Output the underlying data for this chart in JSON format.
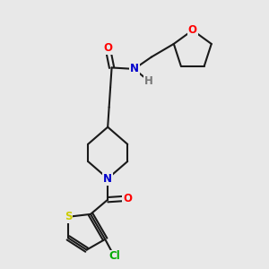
{
  "background_color": "#e8e8e8",
  "bond_color": "#1a1a1a",
  "bond_width": 1.5,
  "atom_colors": {
    "O": "#ff0000",
    "N": "#0000cc",
    "S": "#cccc00",
    "Cl": "#00aa00",
    "H": "#777777",
    "C": "#1a1a1a"
  },
  "font_size": 8.5
}
